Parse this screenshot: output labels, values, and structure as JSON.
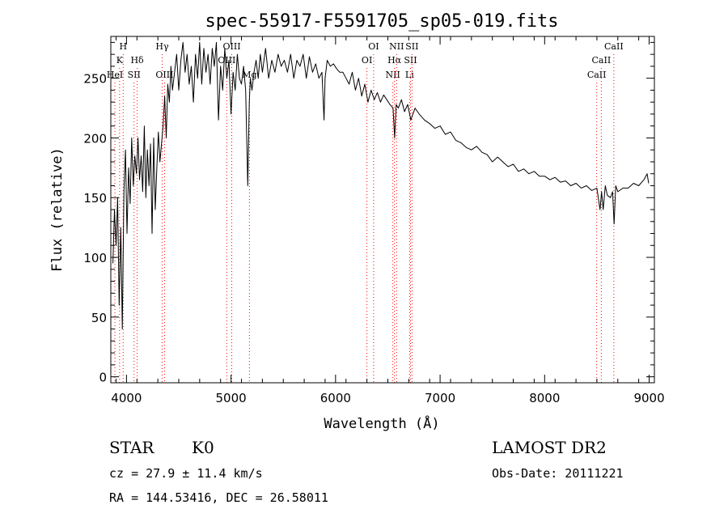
{
  "chart_data": {
    "type": "line",
    "title": "spec-55917-F5591705_sp05-019.fits",
    "xlabel": "Wavelength (Å)",
    "ylabel": "Flux (relative)",
    "xlim": [
      3850,
      9050
    ],
    "ylim": [
      -5,
      285
    ],
    "x_ticks": [
      4000,
      5000,
      6000,
      7000,
      8000,
      9000
    ],
    "y_ticks": [
      0,
      50,
      100,
      150,
      200,
      250
    ],
    "colors": {
      "line": "#000000",
      "markers": "#ff0000"
    },
    "series": [
      {
        "x": [
          3870,
          3885,
          3900,
          3915,
          3930,
          3945,
          3960,
          3975,
          3990,
          4005,
          4020,
          4035,
          4050,
          4065,
          4080,
          4095,
          4110,
          4125,
          4140,
          4155,
          4170,
          4185,
          4200,
          4215,
          4230,
          4245,
          4260,
          4275,
          4290,
          4305,
          4320,
          4335,
          4350,
          4365,
          4380,
          4395,
          4410,
          4425,
          4440,
          4460,
          4480,
          4500,
          4520,
          4540,
          4560,
          4580,
          4600,
          4620,
          4640,
          4660,
          4680,
          4700,
          4720,
          4740,
          4760,
          4780,
          4800,
          4820,
          4840,
          4860,
          4880,
          4900,
          4920,
          4940,
          4960,
          4980,
          5000,
          5020,
          5040,
          5060,
          5080,
          5100,
          5120,
          5140,
          5160,
          5175,
          5185,
          5200,
          5220,
          5240,
          5260,
          5280,
          5300,
          5330,
          5360,
          5390,
          5420,
          5450,
          5480,
          5510,
          5540,
          5570,
          5600,
          5630,
          5660,
          5690,
          5720,
          5750,
          5780,
          5810,
          5840,
          5870,
          5890,
          5900,
          5920,
          5950,
          5980,
          6010,
          6040,
          6070,
          6100,
          6130,
          6160,
          6190,
          6220,
          6250,
          6280,
          6310,
          6340,
          6370,
          6400,
          6430,
          6460,
          6490,
          6520,
          6550,
          6565,
          6580,
          6600,
          6630,
          6660,
          6690,
          6720,
          6760,
          6800,
          6850,
          6900,
          6950,
          7000,
          7050,
          7100,
          7150,
          7200,
          7250,
          7300,
          7350,
          7400,
          7450,
          7500,
          7550,
          7600,
          7650,
          7700,
          7750,
          7800,
          7850,
          7900,
          7950,
          8000,
          8050,
          8100,
          8150,
          8200,
          8250,
          8300,
          8350,
          8400,
          8450,
          8500,
          8530,
          8545,
          8560,
          8580,
          8600,
          8630,
          8650,
          8665,
          8680,
          8700,
          8750,
          8800,
          8850,
          8900,
          8950,
          8980,
          8995
        ],
        "y": [
          95,
          140,
          110,
          150,
          60,
          125,
          40,
          155,
          190,
          120,
          175,
          145,
          200,
          160,
          185,
          170,
          200,
          165,
          185,
          155,
          210,
          150,
          190,
          160,
          195,
          120,
          200,
          140,
          175,
          205,
          180,
          195,
          210,
          235,
          200,
          245,
          230,
          260,
          240,
          255,
          270,
          240,
          265,
          280,
          255,
          270,
          245,
          260,
          230,
          270,
          250,
          280,
          245,
          275,
          255,
          270,
          245,
          275,
          260,
          280,
          215,
          260,
          240,
          275,
          250,
          265,
          220,
          255,
          240,
          270,
          250,
          245,
          260,
          240,
          160,
          230,
          250,
          240,
          255,
          265,
          250,
          270,
          255,
          275,
          250,
          265,
          255,
          270,
          260,
          265,
          255,
          270,
          250,
          265,
          260,
          270,
          250,
          268,
          255,
          262,
          250,
          255,
          215,
          250,
          265,
          260,
          262,
          258,
          255,
          255,
          250,
          245,
          255,
          240,
          250,
          235,
          245,
          230,
          240,
          232,
          238,
          230,
          236,
          232,
          228,
          225,
          200,
          228,
          225,
          232,
          222,
          228,
          215,
          225,
          220,
          215,
          212,
          208,
          210,
          203,
          205,
          198,
          196,
          192,
          190,
          193,
          188,
          186,
          180,
          184,
          180,
          176,
          178,
          172,
          174,
          170,
          172,
          168,
          168,
          165,
          167,
          163,
          164,
          160,
          162,
          158,
          160,
          156,
          158,
          140,
          155,
          140,
          160,
          152,
          150,
          155,
          128,
          160,
          155,
          158,
          158,
          162,
          160,
          165,
          170,
          162
        ]
      }
    ],
    "line_markers": [
      {
        "x": 3889,
        "row": 2,
        "label": "HeI"
      },
      {
        "x": 3934,
        "row": 1,
        "label": "K"
      },
      {
        "x": 3968,
        "row": 0,
        "label": "H"
      },
      {
        "x": 4072,
        "row": 2,
        "label": "SII"
      },
      {
        "x": 4102,
        "row": 1,
        "label": "Hδ"
      },
      {
        "x": 4341,
        "row": 0,
        "label": "Hγ"
      },
      {
        "x": 4364,
        "row": 2,
        "label": "OIII"
      },
      {
        "x": 4959,
        "row": 1,
        "label": "OIII"
      },
      {
        "x": 5007,
        "row": 0,
        "label": "OIII"
      },
      {
        "x": 5176,
        "row": 2,
        "label": "Mg"
      },
      {
        "x": 6300,
        "row": 1,
        "label": "OI"
      },
      {
        "x": 6364,
        "row": 0,
        "label": "OI"
      },
      {
        "x": 6548,
        "row": 2,
        "label": "NII"
      },
      {
        "x": 6563,
        "row": 1,
        "label": "Hα"
      },
      {
        "x": 6584,
        "row": 0,
        "label": "NII"
      },
      {
        "x": 6708,
        "row": 2,
        "label": "Li"
      },
      {
        "x": 6717,
        "row": 1,
        "label": "SII"
      },
      {
        "x": 6731,
        "row": 0,
        "label": "SII"
      },
      {
        "x": 8498,
        "row": 2,
        "label": "CaII"
      },
      {
        "x": 8542,
        "row": 1,
        "label": "CaII"
      },
      {
        "x": 8662,
        "row": 0,
        "label": "CaII"
      }
    ]
  },
  "info": {
    "class": "STAR",
    "subclass": "K0",
    "cz": "cz = 27.9 ± 11.4 km/s",
    "coords": "RA = 144.53416, DEC =  26.58011",
    "survey": "LAMOST DR2",
    "obsdate": "Obs-Date: 20111221"
  }
}
